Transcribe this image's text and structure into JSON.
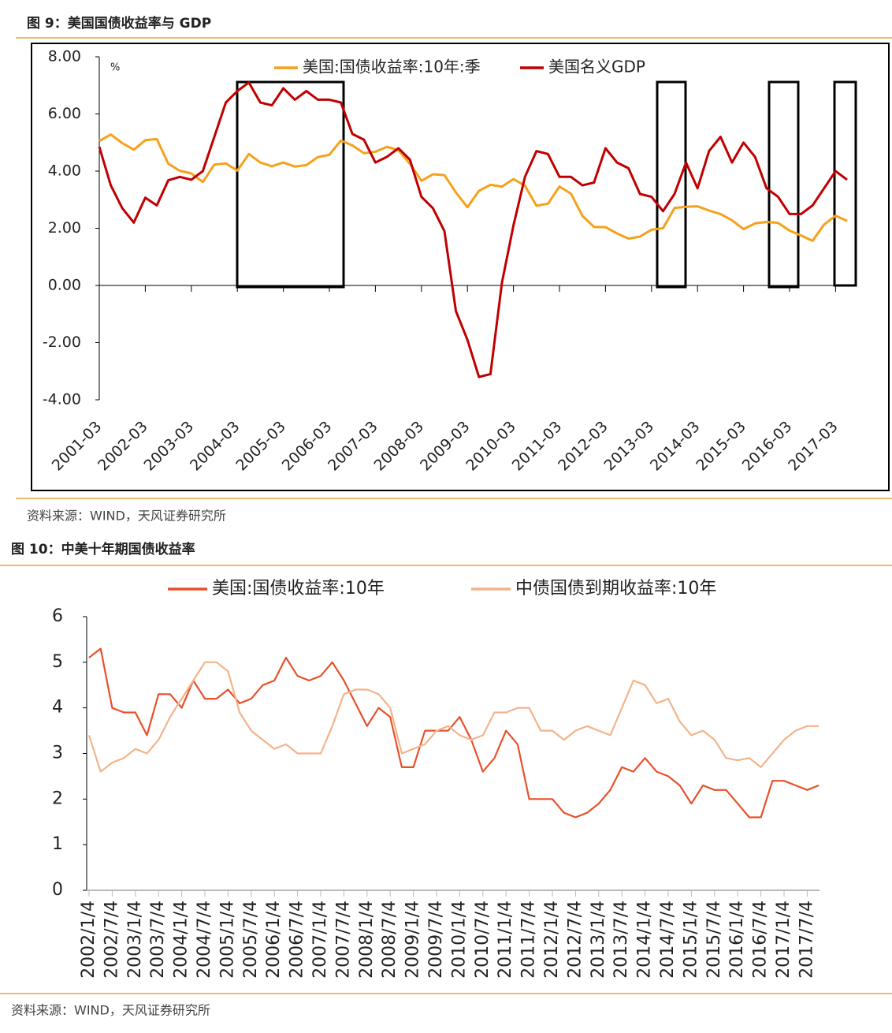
{
  "chart_data": [
    {
      "type": "line",
      "title": "图 9：美国国债收益率与 GDP",
      "source": "资料来源：WIND，天风证券研究所",
      "unit": "%",
      "categories": [
        "2001-03",
        null,
        null,
        null,
        "2002-03",
        null,
        null,
        null,
        "2003-03",
        null,
        null,
        null,
        "2004-03",
        null,
        null,
        null,
        "2005-03",
        null,
        null,
        null,
        "2006-03",
        null,
        null,
        null,
        "2007-03",
        null,
        null,
        null,
        "2008-03",
        null,
        null,
        null,
        "2009-03",
        null,
        null,
        null,
        "2010-03",
        null,
        null,
        null,
        "2011-03",
        null,
        null,
        null,
        "2012-03",
        null,
        null,
        null,
        "2013-03",
        null,
        null,
        null,
        "2014-03",
        null,
        null,
        null,
        "2015-03",
        null,
        null,
        null,
        "2016-03",
        null,
        null,
        null,
        "2017-03",
        null
      ],
      "series": [
        {
          "name": "美国:国债收益率:10年:季",
          "color": "#f5a11c",
          "values": [
            5.05,
            5.28,
            4.98,
            4.75,
            5.08,
            5.12,
            4.26,
            4.01,
            3.92,
            3.62,
            4.23,
            4.27,
            4.02,
            4.6,
            4.3,
            4.17,
            4.3,
            4.16,
            4.21,
            4.49,
            4.57,
            5.07,
            4.9,
            4.63,
            4.68,
            4.85,
            4.73,
            4.26,
            3.66,
            3.89,
            3.86,
            3.25,
            2.74,
            3.31,
            3.52,
            3.46,
            3.72,
            3.49,
            2.79,
            2.86,
            3.46,
            3.21,
            2.43,
            2.05,
            2.04,
            1.82,
            1.64,
            1.71,
            1.95,
            2.0,
            2.71,
            2.75,
            2.77,
            2.62,
            2.5,
            2.28,
            1.97,
            2.17,
            2.22,
            2.19,
            1.92,
            1.75,
            1.56,
            2.13,
            2.44,
            2.26
          ]
        },
        {
          "name": "美国名义GDP",
          "color": "#c00000",
          "values": [
            4.85,
            3.5,
            2.7,
            2.2,
            3.07,
            2.8,
            3.68,
            3.8,
            3.7,
            4.0,
            5.2,
            6.4,
            6.8,
            7.1,
            6.4,
            6.3,
            6.9,
            6.5,
            6.8,
            6.5,
            6.5,
            6.4,
            5.3,
            5.1,
            4.3,
            4.5,
            4.8,
            4.4,
            3.1,
            2.7,
            1.9,
            -0.9,
            -1.9,
            -3.2,
            -3.1,
            0.1,
            2.1,
            3.8,
            4.7,
            4.6,
            3.8,
            3.8,
            3.5,
            3.6,
            4.8,
            4.3,
            4.1,
            3.2,
            3.1,
            2.6,
            3.2,
            4.3,
            3.4,
            4.7,
            5.2,
            4.3,
            5.0,
            4.5,
            3.4,
            3.1,
            2.5,
            2.5,
            2.8,
            3.4,
            4.0,
            3.7
          ]
        }
      ],
      "ylim": [
        -4,
        8
      ],
      "yticks": [
        {
          "value": -4,
          "label": "-4.00"
        },
        {
          "value": -2,
          "label": "-2.00"
        },
        {
          "value": 0,
          "label": "0.00"
        },
        {
          "value": 2,
          "label": "2.00"
        },
        {
          "value": 4,
          "label": "4.00"
        },
        {
          "value": 6,
          "label": "6.00"
        },
        {
          "value": 8,
          "label": "8.00"
        }
      ],
      "grid": false
    },
    {
      "type": "line",
      "title": "图 10：中美十年期国债收益率",
      "source": "资料来源：WIND，天风证券研究所",
      "categories": [
        "2002/1/4",
        null,
        "2002/7/4",
        null,
        "2003/1/4",
        null,
        "2003/7/4",
        null,
        "2004/1/4",
        null,
        "2004/7/4",
        null,
        "2005/1/4",
        null,
        "2005/7/4",
        null,
        "2006/1/4",
        null,
        "2006/7/4",
        null,
        "2007/1/4",
        null,
        "2007/7/4",
        null,
        "2008/1/4",
        null,
        "2008/7/4",
        null,
        "2009/1/4",
        null,
        "2009/7/4",
        null,
        "2010/1/4",
        null,
        "2010/7/4",
        null,
        "2011/1/4",
        null,
        "2011/7/4",
        null,
        "2012/1/4",
        null,
        "2012/7/4",
        null,
        "2013/1/4",
        null,
        "2013/7/4",
        null,
        "2014/1/4",
        null,
        "2014/7/4",
        null,
        "2015/1/4",
        null,
        "2015/7/4",
        null,
        "2016/1/4",
        null,
        "2016/7/4",
        null,
        "2017/1/4",
        null,
        "2017/7/4",
        null
      ],
      "series": [
        {
          "name": "美国:国债收益率:10年",
          "color": "#e8502a",
          "values": [
            5.1,
            5.3,
            4.0,
            3.9,
            3.9,
            3.4,
            4.3,
            4.3,
            4.0,
            4.6,
            4.2,
            4.2,
            4.4,
            4.1,
            4.2,
            4.5,
            4.6,
            5.1,
            4.7,
            4.6,
            4.7,
            5.0,
            4.6,
            4.1,
            3.6,
            4.0,
            3.8,
            2.7,
            2.7,
            3.5,
            3.5,
            3.5,
            3.8,
            3.3,
            2.6,
            2.9,
            3.5,
            3.2,
            2.0,
            2.0,
            2.0,
            1.7,
            1.6,
            1.7,
            1.9,
            2.2,
            2.7,
            2.6,
            2.9,
            2.6,
            2.5,
            2.3,
            1.9,
            2.3,
            2.2,
            2.2,
            1.9,
            1.6,
            1.6,
            2.4,
            2.4,
            2.3,
            2.2,
            2.3
          ]
        },
        {
          "name": "中债国债到期收益率:10年",
          "color": "#f2b48a",
          "values": [
            3.4,
            2.6,
            2.8,
            2.9,
            3.1,
            3.0,
            3.3,
            3.8,
            4.2,
            4.6,
            5.0,
            5.0,
            4.8,
            3.9,
            3.5,
            3.3,
            3.1,
            3.2,
            3.0,
            3.0,
            3.0,
            3.6,
            4.3,
            4.4,
            4.4,
            4.3,
            4.0,
            3.0,
            3.1,
            3.2,
            3.5,
            3.6,
            3.4,
            3.3,
            3.4,
            3.9,
            3.9,
            4.0,
            4.0,
            3.5,
            3.5,
            3.3,
            3.5,
            3.6,
            3.5,
            3.4,
            4.0,
            4.6,
            4.5,
            4.1,
            4.2,
            3.7,
            3.4,
            3.5,
            3.3,
            2.9,
            2.85,
            2.9,
            2.7,
            3.0,
            3.3,
            3.5,
            3.6,
            3.6
          ]
        }
      ],
      "ylim": [
        0,
        6
      ],
      "yticks": [
        0,
        1,
        2,
        3,
        4,
        5,
        6
      ],
      "grid": false
    }
  ]
}
